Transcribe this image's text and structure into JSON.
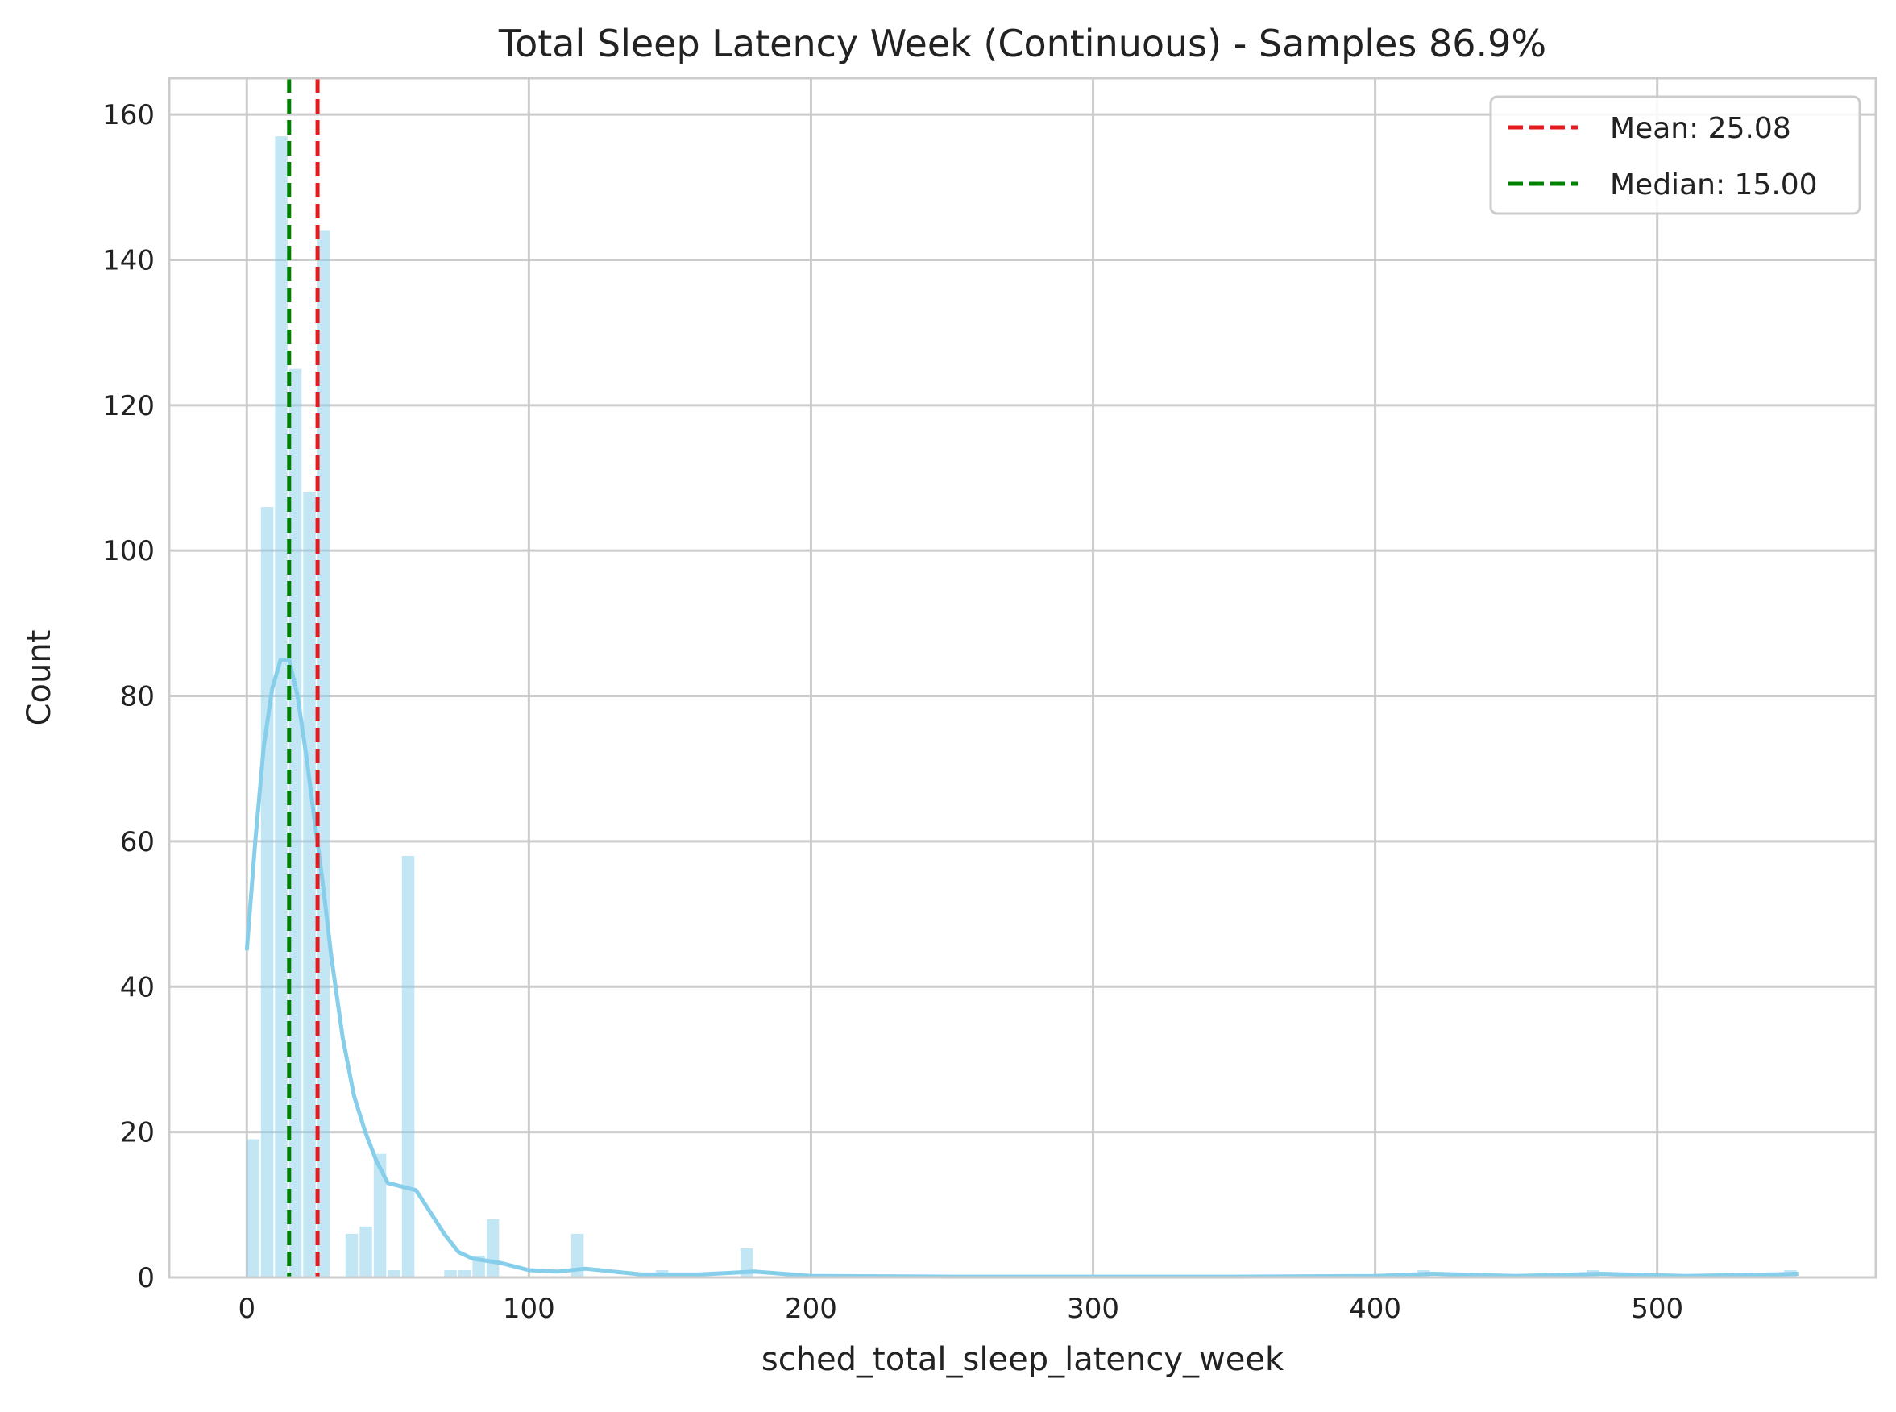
{
  "chart_data": {
    "type": "bar",
    "title": "Total Sleep Latency Week (Continuous) - Samples 86.9%",
    "xlabel": "sched_total_sleep_latency_week",
    "ylabel": "Count",
    "xlim": [
      -27.5,
      577.5
    ],
    "ylim": [
      0,
      165
    ],
    "xticks": [
      0,
      100,
      200,
      300,
      400,
      500
    ],
    "yticks": [
      0,
      20,
      40,
      60,
      80,
      100,
      120,
      140,
      160
    ],
    "grid": true,
    "legend_position": "top-right",
    "bin_width": 5,
    "bars": [
      {
        "x": 0,
        "count": 19
      },
      {
        "x": 5,
        "count": 106
      },
      {
        "x": 10,
        "count": 157
      },
      {
        "x": 15,
        "count": 125
      },
      {
        "x": 20,
        "count": 108
      },
      {
        "x": 25,
        "count": 144
      },
      {
        "x": 35,
        "count": 6
      },
      {
        "x": 40,
        "count": 7
      },
      {
        "x": 45,
        "count": 17
      },
      {
        "x": 50,
        "count": 1
      },
      {
        "x": 55,
        "count": 58
      },
      {
        "x": 70,
        "count": 1
      },
      {
        "x": 75,
        "count": 1
      },
      {
        "x": 80,
        "count": 3
      },
      {
        "x": 85,
        "count": 8
      },
      {
        "x": 115,
        "count": 6
      },
      {
        "x": 145,
        "count": 1
      },
      {
        "x": 175,
        "count": 4
      },
      {
        "x": 415,
        "count": 1
      },
      {
        "x": 475,
        "count": 1
      },
      {
        "x": 545,
        "count": 1
      }
    ],
    "kde": {
      "x": [
        0,
        3,
        6,
        9,
        12,
        15,
        18,
        21,
        24,
        27,
        30,
        34,
        38,
        42,
        46,
        50,
        55,
        60,
        65,
        70,
        75,
        80,
        90,
        100,
        110,
        120,
        130,
        140,
        150,
        160,
        170,
        180,
        190,
        200,
        250,
        300,
        350,
        400,
        420,
        450,
        480,
        510,
        540,
        550
      ],
      "y": [
        45,
        60,
        73,
        81,
        85,
        85,
        80,
        72,
        63,
        54,
        44,
        33,
        25,
        20,
        16,
        13,
        12.5,
        12,
        9,
        6,
        3.5,
        2.6,
        2,
        1,
        0.8,
        1.2,
        0.8,
        0.4,
        0.4,
        0.4,
        0.6,
        0.8,
        0.5,
        0.2,
        0.1,
        0.1,
        0.1,
        0.2,
        0.5,
        0.2,
        0.5,
        0.2,
        0.4,
        0.5
      ]
    },
    "lines": [
      {
        "name": "Mean: 25.08",
        "x": 25.08,
        "color": "#e41a1c",
        "style": "dashed"
      },
      {
        "name": "Median: 15.00",
        "x": 15.0,
        "color": "#008000",
        "style": "dashed"
      }
    ],
    "colors": {
      "bar": "#87ceeb",
      "bar_opacity": 0.5,
      "kde": "#87ceeb"
    }
  }
}
